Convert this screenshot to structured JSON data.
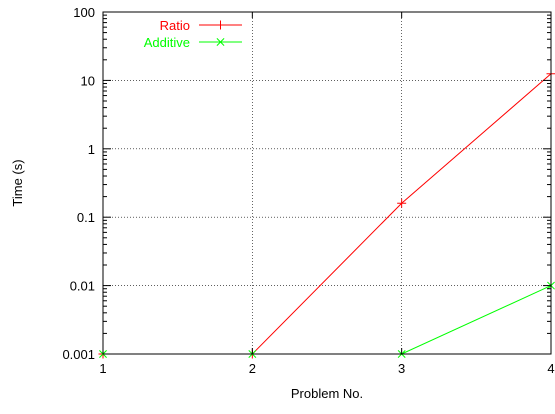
{
  "chart_data": {
    "type": "line",
    "xlabel": "Problem No.",
    "ylabel": "Time (s)",
    "x": [
      1,
      2,
      3,
      4
    ],
    "xlim": [
      1,
      4
    ],
    "ylim": [
      0.001,
      100
    ],
    "yscale": "log",
    "xticks": [
      "1",
      "2",
      "3",
      "4"
    ],
    "yticks": [
      "0.001",
      "0.01",
      "0.1",
      "1",
      "10",
      "100"
    ],
    "grid": true,
    "legend_position": "top-left",
    "series": [
      {
        "name": "Ratio",
        "color": "#ff0000",
        "marker": "plus",
        "values": [
          0.001,
          0.001,
          0.16,
          12.5
        ]
      },
      {
        "name": "Additive",
        "color": "#00ff00",
        "marker": "cross",
        "values": [
          0.001,
          0.001,
          0.001,
          0.01
        ]
      }
    ]
  }
}
